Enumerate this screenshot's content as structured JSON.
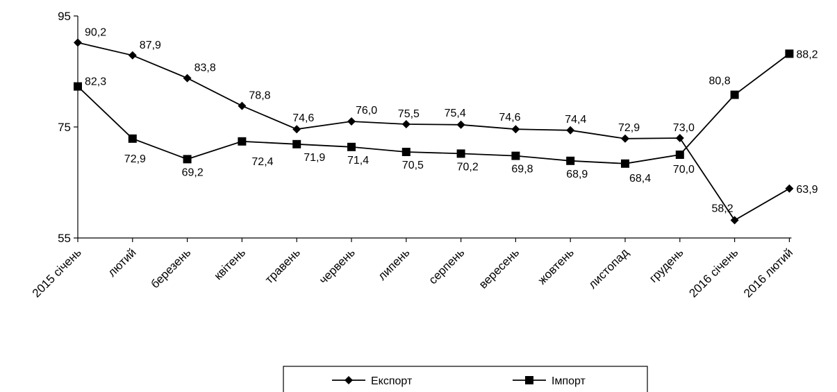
{
  "chart_data": {
    "type": "line",
    "categories": [
      "2015 січень",
      "лютий",
      "березень",
      "квітень",
      "травень",
      "червень",
      "липень",
      "серпень",
      "вересень",
      "жовтень",
      "листопад",
      "грудень",
      "2016 січень",
      "2016 лютий"
    ],
    "series": [
      {
        "name": "Експорт",
        "marker": "diamond",
        "values": [
          90.2,
          87.9,
          83.8,
          78.8,
          74.6,
          76.0,
          75.5,
          75.4,
          74.6,
          74.4,
          72.9,
          73.0,
          58.2,
          63.9
        ],
        "labels": [
          "90,2",
          "87,9",
          "83,8",
          "78,8",
          "74,6",
          "76,0",
          "75,5",
          "75,4",
          "74,6",
          "74,4",
          "72,9",
          "73,0",
          "58,2",
          "63,9"
        ]
      },
      {
        "name": "Імпорт",
        "marker": "square",
        "values": [
          82.3,
          72.9,
          69.2,
          72.4,
          71.9,
          71.4,
          70.5,
          70.2,
          69.8,
          68.9,
          68.4,
          70.0,
          80.8,
          88.2
        ],
        "labels": [
          "82,3",
          "72,9",
          "69,2",
          "72,4",
          "71,9",
          "71,4",
          "70,5",
          "70,2",
          "69,8",
          "68,9",
          "68,4",
          "70,0",
          "80,8",
          "88,2"
        ]
      }
    ],
    "yticks": [
      55,
      75,
      95
    ],
    "ytick_labels": [
      "55",
      "75",
      "95"
    ],
    "ylim": [
      55,
      95
    ],
    "grid": false,
    "legend_position": "bottom-center",
    "line_color": "#000000"
  }
}
